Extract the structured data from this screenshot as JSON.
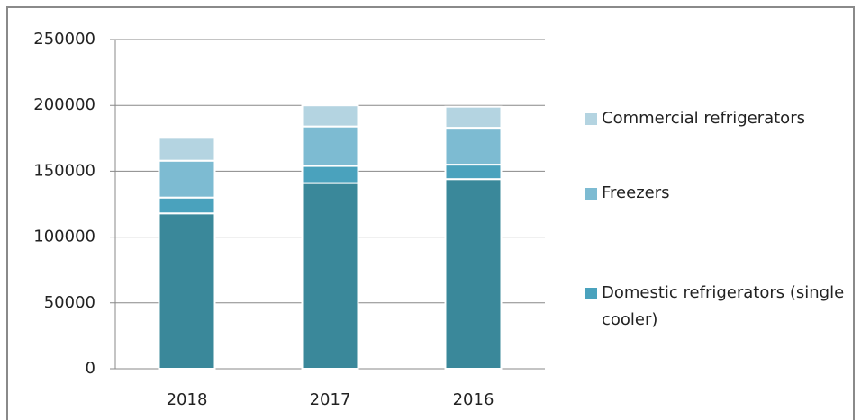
{
  "chart_data": {
    "type": "stacked_bar",
    "categories": [
      "2018",
      "2017",
      "2016"
    ],
    "series": [
      {
        "color": "#3a889a",
        "values": [
          118000,
          141000,
          144000
        ]
      },
      {
        "name": "Domestic refrigerators (single cooler)",
        "color": "#4aa2bd",
        "values": [
          12000,
          13000,
          11000
        ]
      },
      {
        "name": "Freezers",
        "color": "#7dbbd2",
        "values": [
          28000,
          30000,
          28000
        ]
      },
      {
        "name": "Commercial refrigerators",
        "color": "#b4d4e1",
        "values": [
          18000,
          16000,
          16000
        ]
      }
    ],
    "ylim": [
      0,
      250000
    ],
    "yticks": [
      0,
      50000,
      100000,
      150000,
      200000,
      250000
    ],
    "grid": true,
    "legend": "right"
  }
}
